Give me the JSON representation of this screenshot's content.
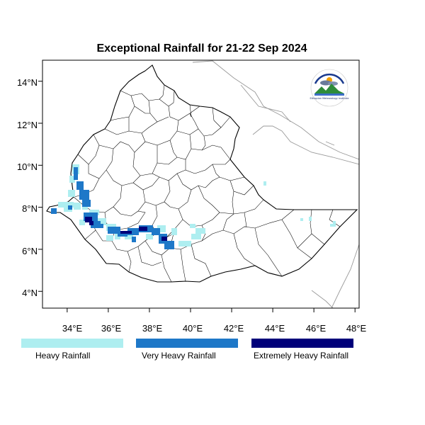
{
  "map": {
    "title": "Exceptional Rainfall for 21-22 Sep 2024",
    "region": "Ethiopia",
    "lon_range": [
      32.8,
      48.2
    ],
    "lat_range": [
      3.2,
      15.0
    ],
    "x_ticks": [
      {
        "value": 34,
        "label": "34°E"
      },
      {
        "value": 36,
        "label": "36°E"
      },
      {
        "value": 38,
        "label": "38°E"
      },
      {
        "value": 40,
        "label": "40°E"
      },
      {
        "value": 42,
        "label": "42°E"
      },
      {
        "value": 44,
        "label": "44°E"
      },
      {
        "value": 46,
        "label": "46°E"
      },
      {
        "value": 48,
        "label": "48°E"
      }
    ],
    "y_ticks": [
      {
        "value": 14,
        "label": "14°N"
      },
      {
        "value": 12,
        "label": "12°N"
      },
      {
        "value": 10,
        "label": "10°N"
      },
      {
        "value": 8,
        "label": "8°N"
      },
      {
        "value": 6,
        "label": "6°N"
      },
      {
        "value": 4,
        "label": "4°N"
      }
    ]
  },
  "legend": {
    "items": [
      {
        "label": "Heavy Rainfall",
        "color": "#aeeef0"
      },
      {
        "label": "Very Heavy Rainfall",
        "color": "#1e78c8"
      },
      {
        "label": "Extremely Heavy Rainfall",
        "color": "#00007a"
      }
    ]
  },
  "logo": {
    "icon": "meteorology-institute-logo",
    "text": "Ethiopian Meteorology Institute"
  },
  "colors": {
    "frame": "#000000",
    "admin_border": "#000000",
    "neighbor_border": "#999999",
    "heavy": "#aeeef0",
    "very_heavy": "#1e78c8",
    "extremely_heavy": "#00007a"
  }
}
